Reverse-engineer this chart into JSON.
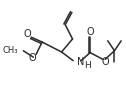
{
  "bg_color": "#ffffff",
  "line_color": "#2a2a2a",
  "line_width": 1.1,
  "font_size": 6.5,
  "xlim": [
    0,
    10
  ],
  "ylim": [
    0,
    8
  ]
}
